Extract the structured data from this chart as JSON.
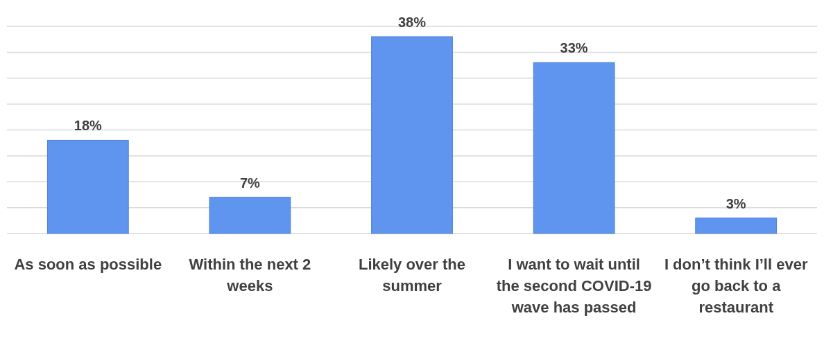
{
  "chart_data": {
    "type": "bar",
    "categories": [
      "As soon as possible",
      "Within the next 2 weeks",
      "Likely over the summer",
      "I want to wait until the second COVID-19 wave has passed",
      "I don’t think I’ll ever go back to a restaurant"
    ],
    "values": [
      18,
      7,
      38,
      33,
      3
    ],
    "value_labels": [
      "18%",
      "7%",
      "38%",
      "33%",
      "3%"
    ],
    "color": "#5f95ee",
    "ylim": [
      0,
      40
    ],
    "yticks": [
      {
        "value": 0,
        "label": null
      },
      {
        "value": 5,
        "label": null
      },
      {
        "value": 10,
        "label": null
      },
      {
        "value": 15,
        "label": null
      },
      {
        "value": 20,
        "label": null
      },
      {
        "value": 25,
        "label": null
      },
      {
        "value": 30,
        "label": null
      },
      {
        "value": 35,
        "label": null
      },
      {
        "value": 40,
        "label": null
      }
    ],
    "grid": "y"
  }
}
